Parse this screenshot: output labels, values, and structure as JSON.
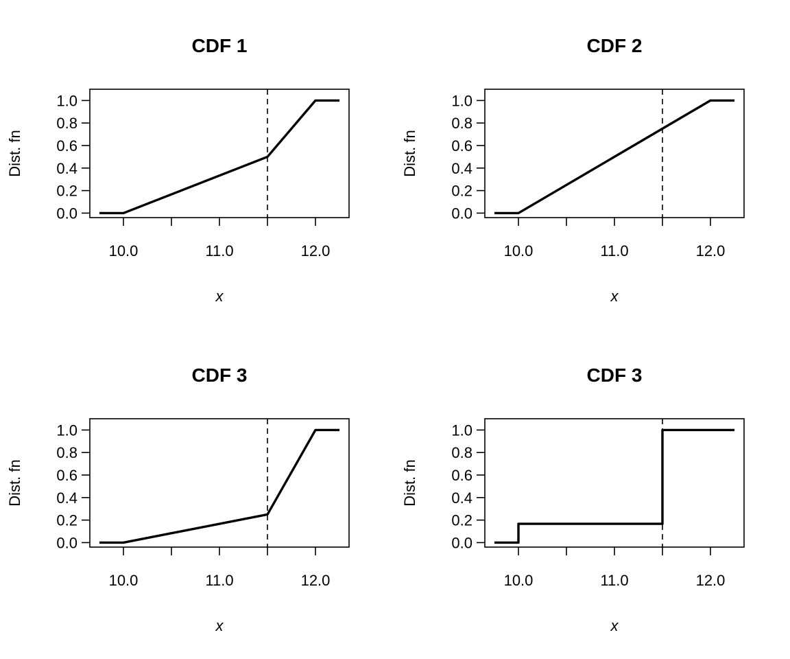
{
  "chart_data": [
    {
      "type": "line",
      "title": "CDF 1",
      "xlabel": "x",
      "ylabel": "Dist. fn",
      "xlim": [
        9.65,
        12.35
      ],
      "ylim": [
        -0.04,
        1.1
      ],
      "x_ticks": [
        10.0,
        11.0,
        12.0
      ],
      "x_minor_ticks": [
        10.5,
        11.5
      ],
      "x_tick_labels": [
        "10.0",
        "11.0",
        "12.0"
      ],
      "y_ticks": [
        0.0,
        0.2,
        0.4,
        0.6,
        0.8,
        1.0
      ],
      "y_tick_labels": [
        "0.0",
        "0.2",
        "0.4",
        "0.6",
        "0.8",
        "1.0"
      ],
      "vline": 11.5,
      "grid": false,
      "series": [
        {
          "x": [
            9.75,
            10.0,
            11.5,
            12.0,
            12.25
          ],
          "y": [
            0.0,
            0.0,
            0.5,
            1.0,
            1.0
          ]
        }
      ]
    },
    {
      "type": "line",
      "title": "CDF 2",
      "xlabel": "x",
      "ylabel": "Dist. fn",
      "xlim": [
        9.65,
        12.35
      ],
      "ylim": [
        -0.04,
        1.1
      ],
      "x_ticks": [
        10.0,
        11.0,
        12.0
      ],
      "x_minor_ticks": [
        10.5,
        11.5
      ],
      "x_tick_labels": [
        "10.0",
        "11.0",
        "12.0"
      ],
      "y_ticks": [
        0.0,
        0.2,
        0.4,
        0.6,
        0.8,
        1.0
      ],
      "y_tick_labels": [
        "0.0",
        "0.2",
        "0.4",
        "0.6",
        "0.8",
        "1.0"
      ],
      "vline": 11.5,
      "grid": false,
      "series": [
        {
          "x": [
            9.75,
            10.0,
            12.0,
            12.25
          ],
          "y": [
            0.0,
            0.0,
            1.0,
            1.0
          ]
        }
      ]
    },
    {
      "type": "line",
      "title": "CDF 3",
      "xlabel": "x",
      "ylabel": "Dist. fn",
      "xlim": [
        9.65,
        12.35
      ],
      "ylim": [
        -0.04,
        1.1
      ],
      "x_ticks": [
        10.0,
        11.0,
        12.0
      ],
      "x_minor_ticks": [
        10.5,
        11.5
      ],
      "x_tick_labels": [
        "10.0",
        "11.0",
        "12.0"
      ],
      "y_ticks": [
        0.0,
        0.2,
        0.4,
        0.6,
        0.8,
        1.0
      ],
      "y_tick_labels": [
        "0.0",
        "0.2",
        "0.4",
        "0.6",
        "0.8",
        "1.0"
      ],
      "vline": 11.5,
      "grid": false,
      "series": [
        {
          "x": [
            9.75,
            10.0,
            11.5,
            12.0,
            12.25
          ],
          "y": [
            0.0,
            0.0,
            0.25,
            1.0,
            1.0
          ]
        }
      ]
    },
    {
      "type": "line",
      "title": "CDF 3",
      "xlabel": "x",
      "ylabel": "Dist. fn",
      "xlim": [
        9.65,
        12.35
      ],
      "ylim": [
        -0.04,
        1.1
      ],
      "x_ticks": [
        10.0,
        11.0,
        12.0
      ],
      "x_minor_ticks": [
        10.5,
        11.5
      ],
      "x_tick_labels": [
        "10.0",
        "11.0",
        "12.0"
      ],
      "y_ticks": [
        0.0,
        0.2,
        0.4,
        0.6,
        0.8,
        1.0
      ],
      "y_tick_labels": [
        "0.0",
        "0.2",
        "0.4",
        "0.6",
        "0.8",
        "1.0"
      ],
      "vline": 11.5,
      "grid": false,
      "series": [
        {
          "x": [
            9.75,
            10.0,
            10.0,
            11.5,
            11.5,
            12.25
          ],
          "y": [
            0.0,
            0.0,
            0.1667,
            0.1667,
            1.0,
            1.0
          ]
        }
      ]
    }
  ]
}
